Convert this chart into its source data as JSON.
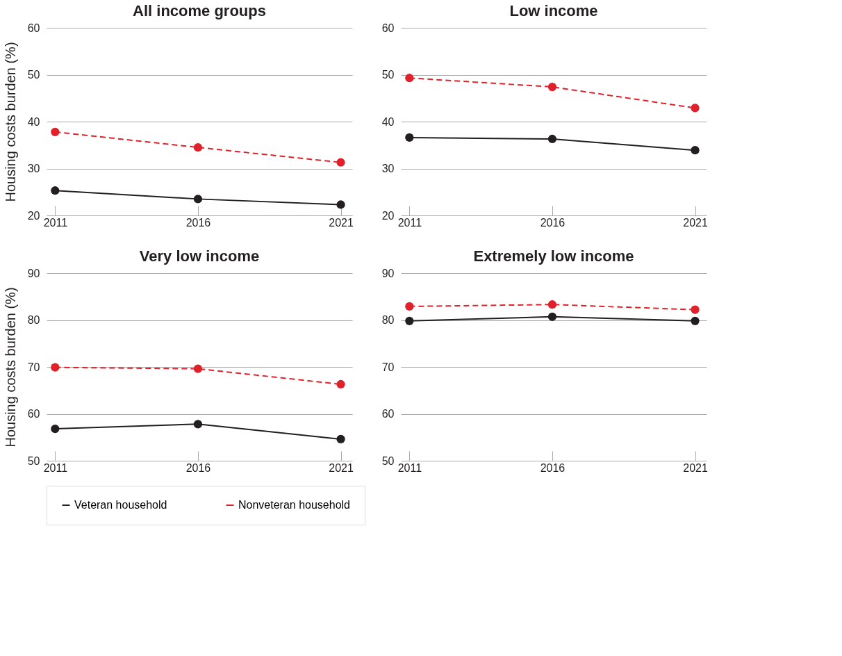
{
  "chart_data": [
    {
      "type": "line",
      "title": "All income groups",
      "ylabel": "Housing costs burden (%)",
      "x": [
        2011,
        2016,
        2021
      ],
      "xlim": [
        2010.7,
        2021.4
      ],
      "xticks": [
        2011,
        2016,
        2021
      ],
      "ylim": [
        20,
        60
      ],
      "yticks": [
        20,
        30,
        40,
        50,
        60
      ],
      "grid": "y",
      "marker": "circle",
      "legend": "bottom",
      "tick_labels": true,
      "series": [
        {
          "name": "Veteran household",
          "color": "#231f20",
          "line_style": "solid",
          "values": [
            25.3,
            23.5,
            22.3
          ]
        },
        {
          "name": "Nonveteran household",
          "color": "#e0202a",
          "line_style": "dashed",
          "values": [
            37.8,
            34.5,
            31.3
          ]
        }
      ]
    },
    {
      "type": "line",
      "title": "Low income",
      "x": [
        2011,
        2016,
        2021
      ],
      "xlim": [
        2010.7,
        2021.4
      ],
      "xticks": [
        2011,
        2016,
        2021
      ],
      "ylim": [
        20,
        60
      ],
      "yticks": [
        20,
        30,
        40,
        50,
        60
      ],
      "grid": "y",
      "marker": "circle",
      "legend": "bottom",
      "series": [
        {
          "name": "Veteran household",
          "color": "#231f20",
          "line_style": "solid",
          "values": [
            36.6,
            36.3,
            33.9
          ]
        },
        {
          "name": "Nonveteran household",
          "color": "#e0202a",
          "line_style": "dashed",
          "values": [
            49.3,
            47.4,
            42.9
          ]
        }
      ]
    },
    {
      "type": "line",
      "title": "Very low income",
      "ylabel": "Housing costs burden (%)",
      "x": [
        2011,
        2016,
        2021
      ],
      "xlim": [
        2010.7,
        2021.4
      ],
      "xticks": [
        2011,
        2016,
        2021
      ],
      "ylim": [
        50,
        90
      ],
      "yticks": [
        50,
        60,
        70,
        80,
        90
      ],
      "grid": "y",
      "marker": "circle",
      "legend": "bottom",
      "series": [
        {
          "name": "Veteran household",
          "color": "#231f20",
          "line_style": "solid",
          "values": [
            56.8,
            57.8,
            54.6
          ]
        },
        {
          "name": "Nonveteran household",
          "color": "#e0202a",
          "line_style": "dashed",
          "values": [
            69.9,
            69.6,
            66.3
          ]
        }
      ]
    },
    {
      "type": "line",
      "title": "Extremely low income",
      "x": [
        2011,
        2016,
        2021
      ],
      "xlim": [
        2010.7,
        2021.4
      ],
      "xticks": [
        2011,
        2016,
        2021
      ],
      "ylim": [
        50,
        90
      ],
      "yticks": [
        50,
        60,
        70,
        80,
        90
      ],
      "grid": "y",
      "marker": "circle",
      "legend": "bottom",
      "series": [
        {
          "name": "Veteran household",
          "color": "#231f20",
          "line_style": "solid",
          "values": [
            79.8,
            80.7,
            79.8
          ]
        },
        {
          "name": "Nonveteran household",
          "color": "#e0202a",
          "line_style": "dashed",
          "values": [
            82.9,
            83.3,
            82.2
          ]
        }
      ]
    }
  ]
}
